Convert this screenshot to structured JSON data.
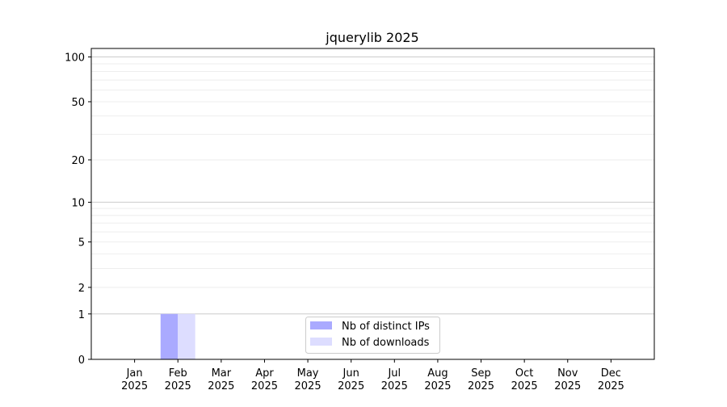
{
  "chart_data": {
    "type": "bar",
    "title": "jquerylib 2025",
    "xlabel": "",
    "ylabel": "",
    "yscale": "log10(1+y)",
    "ylim": [
      0,
      114
    ],
    "yticks": [
      0,
      1,
      2,
      5,
      10,
      20,
      50,
      100
    ],
    "ytick_labels": [
      "0",
      "1",
      "2",
      "5",
      "10",
      "20",
      "50",
      "100"
    ],
    "grid": true,
    "legend_position": "bottom-center",
    "categories": [
      "Jan\n2025",
      "Feb\n2025",
      "Mar\n2025",
      "Apr\n2025",
      "May\n2025",
      "Jun\n2025",
      "Jul\n2025",
      "Aug\n2025",
      "Sep\n2025",
      "Oct\n2025",
      "Nov\n2025",
      "Dec\n2025"
    ],
    "series": [
      {
        "name": "Nb of distinct IPs",
        "color": "#aaaaff",
        "values": [
          0,
          1,
          0,
          0,
          0,
          0,
          0,
          0,
          0,
          0,
          0,
          0
        ]
      },
      {
        "name": "Nb of downloads",
        "color": "#ddddff",
        "values": [
          0,
          1,
          0,
          0,
          0,
          0,
          0,
          0,
          0,
          0,
          0,
          0
        ]
      }
    ]
  }
}
